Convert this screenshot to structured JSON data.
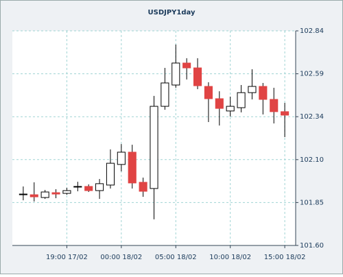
{
  "chart_data": {
    "type": "candlestick",
    "title": "USDJPY1day",
    "categories": [
      null,
      null,
      null,
      null,
      "19:00 17/02",
      null,
      null,
      null,
      null,
      "00:00 18/02",
      null,
      null,
      null,
      null,
      "05:00 18/02",
      null,
      null,
      null,
      null,
      "10:00 18/02",
      null,
      null,
      null,
      null,
      "15:00 18/02"
    ],
    "series": [
      {
        "open": [
          101.893,
          101.893,
          101.877,
          101.905,
          101.901,
          101.937,
          101.941,
          101.917,
          101.949,
          102.068,
          102.139,
          101.965,
          101.929,
          102.404,
          102.527,
          102.654,
          102.626,
          102.519,
          102.448,
          102.377,
          102.396,
          102.483,
          102.519,
          102.444,
          102.373
        ],
        "high": [
          101.941,
          101.965,
          101.921,
          101.925,
          101.933,
          101.968,
          101.953,
          101.984,
          102.155,
          102.186,
          102.182,
          101.992,
          102.464,
          102.626,
          102.761,
          102.682,
          102.682,
          102.543,
          102.491,
          102.46,
          102.527,
          102.618,
          102.539,
          102.511,
          102.424
        ],
        "low": [
          101.861,
          101.854,
          101.869,
          101.873,
          101.893,
          101.913,
          101.909,
          101.869,
          101.929,
          102.028,
          101.929,
          101.881,
          101.751,
          102.384,
          102.511,
          102.559,
          102.503,
          102.313,
          102.293,
          102.345,
          102.369,
          102.444,
          102.357,
          102.305,
          102.226
        ],
        "close": [
          101.897,
          101.881,
          101.909,
          101.897,
          101.917,
          101.941,
          101.917,
          101.957,
          102.075,
          102.139,
          101.961,
          101.913,
          102.404,
          102.539,
          102.654,
          102.626,
          102.523,
          102.448,
          102.392,
          102.404,
          102.483,
          102.519,
          102.444,
          102.373,
          102.353
        ]
      }
    ],
    "up_color": "#ffffff",
    "down_color": "#e04444",
    "ylim": [
      101.6,
      102.84
    ],
    "yticks": [
      {
        "value": 101.6,
        "label": "101.60"
      },
      {
        "value": 101.848,
        "label": "101.85"
      },
      {
        "value": 102.096,
        "label": "102.10"
      },
      {
        "value": 102.344,
        "label": "102.34"
      },
      {
        "value": 102.592,
        "label": "102.59"
      },
      {
        "value": 102.84,
        "label": "102.84"
      }
    ],
    "grid": true
  }
}
